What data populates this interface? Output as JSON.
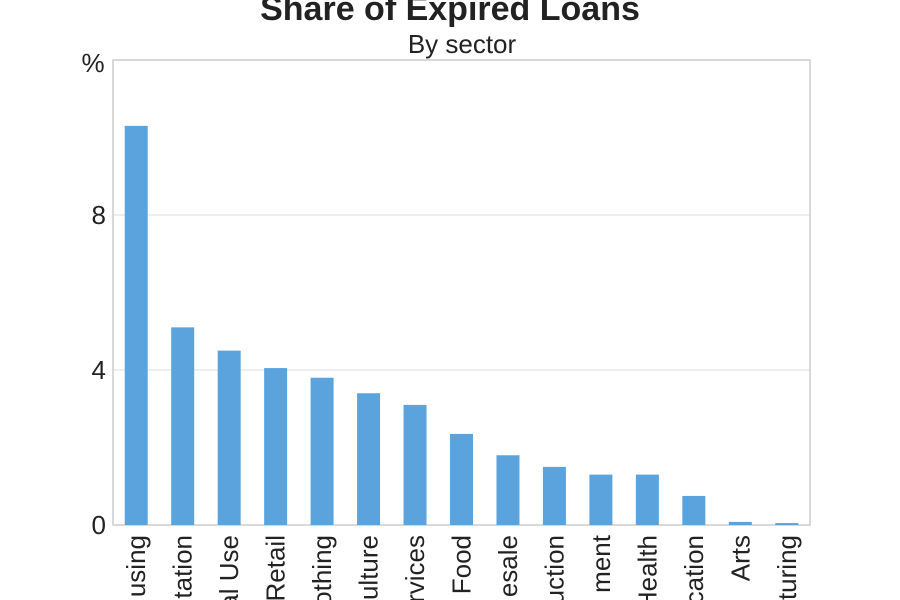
{
  "chart_data": {
    "type": "bar",
    "title": "Share of Expired Loans",
    "subtitle": "By sector",
    "y_unit": "%",
    "categories": [
      "Housing",
      "Transportation",
      "Personal Use",
      "Retail",
      "Clothing",
      "Agriculture",
      "Services",
      "Food",
      "Wholesale",
      "Construction",
      "Entertainment",
      "Health",
      "Education",
      "Arts",
      "Manufacturing"
    ],
    "category_labels_visible": [
      "using",
      "tation",
      "al Use",
      "Retail",
      "othing",
      "ulture",
      "rvices",
      "Food",
      "esale",
      "uction",
      "ment",
      "Health",
      "cation",
      "Arts",
      "turing"
    ],
    "values": [
      10.3,
      5.1,
      4.5,
      4.05,
      3.8,
      3.4,
      3.1,
      2.35,
      1.8,
      1.5,
      1.3,
      1.3,
      0.75,
      0.08,
      0.05
    ],
    "yticks": [
      0,
      4,
      8
    ],
    "ylim": [
      0,
      12
    ],
    "grid": "horizontal",
    "legend": "none",
    "bar_color": "#5ba3dc"
  }
}
